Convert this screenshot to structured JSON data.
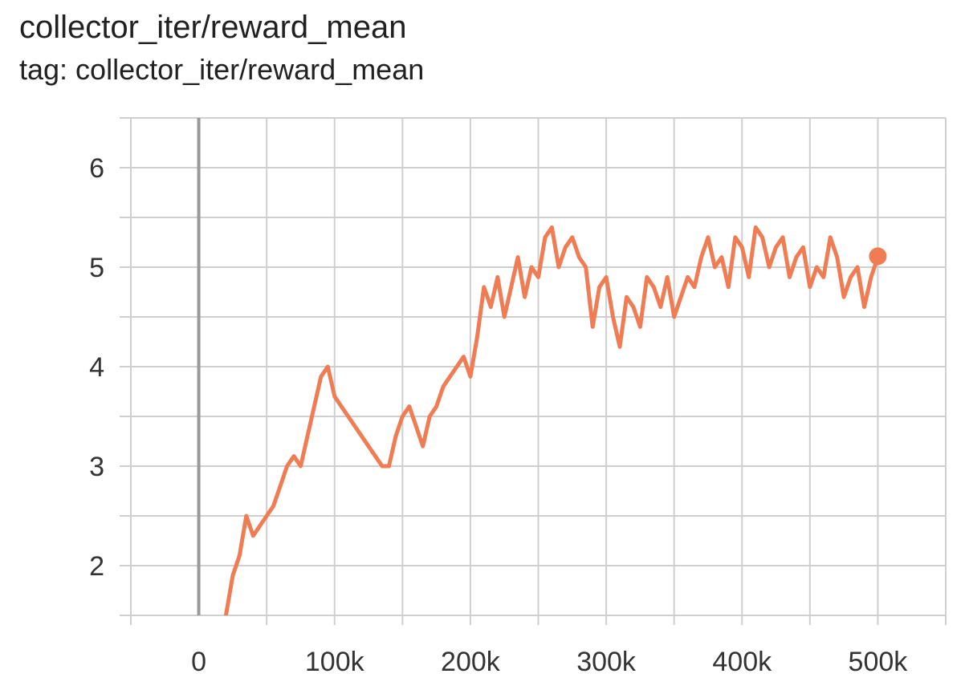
{
  "header": {
    "title": "collector_iter/reward_mean",
    "subtitle": "tag: collector_iter/reward_mean"
  },
  "colors": {
    "series": "#ef7c53",
    "grid": "#cfcfcf",
    "zero_line": "#9a9a9a"
  },
  "chart_data": {
    "type": "line",
    "title": "collector_iter/reward_mean",
    "subtitle": "tag: collector_iter/reward_mean",
    "xlabel": "",
    "ylabel": "",
    "xlim": [
      -50000,
      550000
    ],
    "ylim": [
      1.5,
      6.5
    ],
    "grid": true,
    "x_ticks": [
      0,
      100000,
      200000,
      300000,
      400000,
      500000
    ],
    "x_tick_labels": [
      "0",
      "100k",
      "200k",
      "300k",
      "400k",
      "500k"
    ],
    "y_ticks": [
      2,
      3,
      4,
      5,
      6
    ],
    "y_tick_labels": [
      "2",
      "3",
      "4",
      "5",
      "6"
    ],
    "legend": "none",
    "series": [
      {
        "x": [
          20000,
          25000,
          30000,
          35000,
          40000,
          45000,
          50000,
          55000,
          60000,
          65000,
          70000,
          75000,
          80000,
          85000,
          90000,
          95000,
          100000,
          105000,
          110000,
          115000,
          120000,
          125000,
          130000,
          135000,
          140000,
          145000,
          150000,
          155000,
          160000,
          165000,
          170000,
          175000,
          180000,
          185000,
          190000,
          195000,
          200000,
          205000,
          210000,
          215000,
          220000,
          225000,
          230000,
          235000,
          240000,
          245000,
          250000,
          255000,
          260000,
          265000,
          270000,
          275000,
          280000,
          285000,
          290000,
          295000,
          300000,
          305000,
          310000,
          315000,
          320000,
          325000,
          330000,
          335000,
          340000,
          345000,
          350000,
          355000,
          360000,
          365000,
          370000,
          375000,
          380000,
          385000,
          390000,
          395000,
          400000,
          405000,
          410000,
          415000,
          420000,
          425000,
          430000,
          435000,
          440000,
          445000,
          450000,
          455000,
          460000,
          465000,
          470000,
          475000,
          480000,
          485000,
          490000,
          495000,
          500000
        ],
        "values": [
          1.5,
          1.9,
          2.1,
          2.5,
          2.3,
          2.4,
          2.5,
          2.6,
          2.8,
          3.0,
          3.1,
          3.0,
          3.3,
          3.6,
          3.9,
          4.0,
          3.7,
          3.6,
          3.5,
          3.4,
          3.3,
          3.2,
          3.1,
          3.0,
          3.0,
          3.3,
          3.5,
          3.6,
          3.4,
          3.2,
          3.5,
          3.6,
          3.8,
          3.9,
          4.0,
          4.1,
          3.9,
          4.3,
          4.8,
          4.6,
          4.9,
          4.5,
          4.8,
          5.1,
          4.7,
          5.0,
          4.9,
          5.3,
          5.4,
          5.0,
          5.2,
          5.3,
          5.1,
          5.0,
          4.4,
          4.8,
          4.9,
          4.5,
          4.2,
          4.7,
          4.6,
          4.4,
          4.9,
          4.8,
          4.6,
          4.9,
          4.5,
          4.7,
          4.9,
          4.8,
          5.1,
          5.3,
          5.0,
          5.1,
          4.8,
          5.3,
          5.2,
          4.9,
          5.4,
          5.3,
          5.0,
          5.2,
          5.3,
          4.9,
          5.1,
          5.2,
          4.8,
          5.0,
          4.9,
          5.3,
          5.1,
          4.7,
          4.9,
          5.0,
          4.6,
          4.9,
          5.1
        ]
      }
    ],
    "last_point": {
      "x": 500000,
      "y": 5.11
    }
  }
}
